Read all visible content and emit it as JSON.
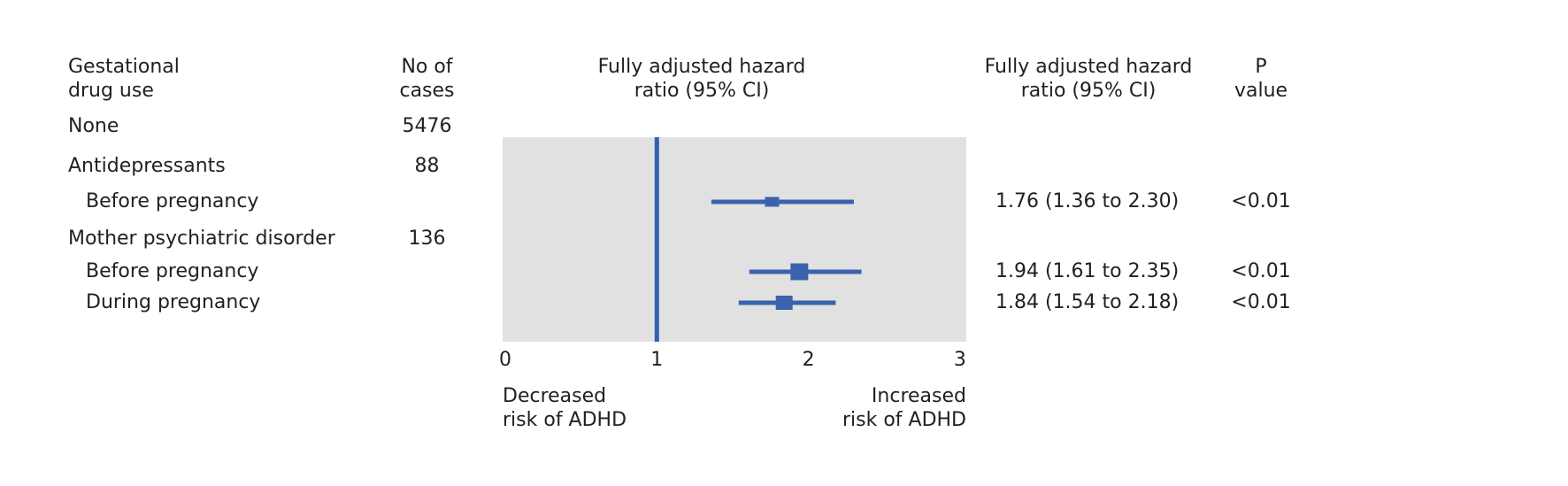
{
  "figure": {
    "columns": {
      "drug_use": {
        "line1": "Gestational",
        "line2": "drug use"
      },
      "cases": {
        "line1": "No of",
        "line2": "cases"
      },
      "chart": {
        "line1": "Fully adjusted hazard",
        "line2": "ratio (95% CI)"
      },
      "hr": {
        "line1": "Fully adjusted hazard",
        "line2": "ratio (95% CI)"
      },
      "p": {
        "line1": "P",
        "line2": "value"
      }
    },
    "rows": [
      {
        "label": "None",
        "cases": "5476",
        "indent": false,
        "hr_text": "",
        "p": ""
      },
      {
        "label": "Antidepressants",
        "cases": "88",
        "indent": false,
        "hr_text": "",
        "p": ""
      },
      {
        "label": "Before pregnancy",
        "cases": "",
        "indent": true,
        "hr_text": "1.76 (1.36 to 2.30)",
        "p": "<0.01"
      },
      {
        "label": "Mother psychiatric disorder",
        "cases": "136",
        "indent": false,
        "hr_text": "",
        "p": ""
      },
      {
        "label": "Before pregnancy",
        "cases": "",
        "indent": true,
        "hr_text": "1.94 (1.61 to 2.35)",
        "p": "<0.01"
      },
      {
        "label": "During pregnancy",
        "cases": "",
        "indent": true,
        "hr_text": "1.84 (1.54 to 2.18)",
        "p": "<0.01"
      }
    ]
  },
  "chart_data": {
    "type": "forest",
    "title": "Fully adjusted hazard ratio (95% CI)",
    "x_range": [
      0,
      3
    ],
    "x_ticks": [
      0,
      1,
      2,
      3
    ],
    "reference_line": 1,
    "grid": false,
    "axis_label_left": {
      "line1": "Decreased",
      "line2": "risk of ADHD"
    },
    "axis_label_right": {
      "line1": "Increased",
      "line2": "risk of ADHD"
    },
    "points": [
      {
        "row_label": "Antidepressants - Before pregnancy",
        "hr": 1.76,
        "ci_low": 1.36,
        "ci_high": 2.3,
        "p": "<0.01",
        "row_index": 2,
        "marker": [
          16,
          11
        ]
      },
      {
        "row_label": "Mother psychiatric disorder - Before pregnancy",
        "hr": 1.94,
        "ci_low": 1.61,
        "ci_high": 2.35,
        "p": "<0.01",
        "row_index": 4,
        "marker": [
          20,
          19
        ]
      },
      {
        "row_label": "Mother psychiatric disorder - During pregnancy",
        "hr": 1.84,
        "ci_low": 1.54,
        "ci_high": 2.18,
        "p": "<0.01",
        "row_index": 5,
        "marker": [
          19,
          16
        ]
      }
    ],
    "colors": {
      "marker": "#3a62ad",
      "reference_line": "#3061ae",
      "plot_bg": "#e1e1e1",
      "text": "#231f20"
    }
  }
}
